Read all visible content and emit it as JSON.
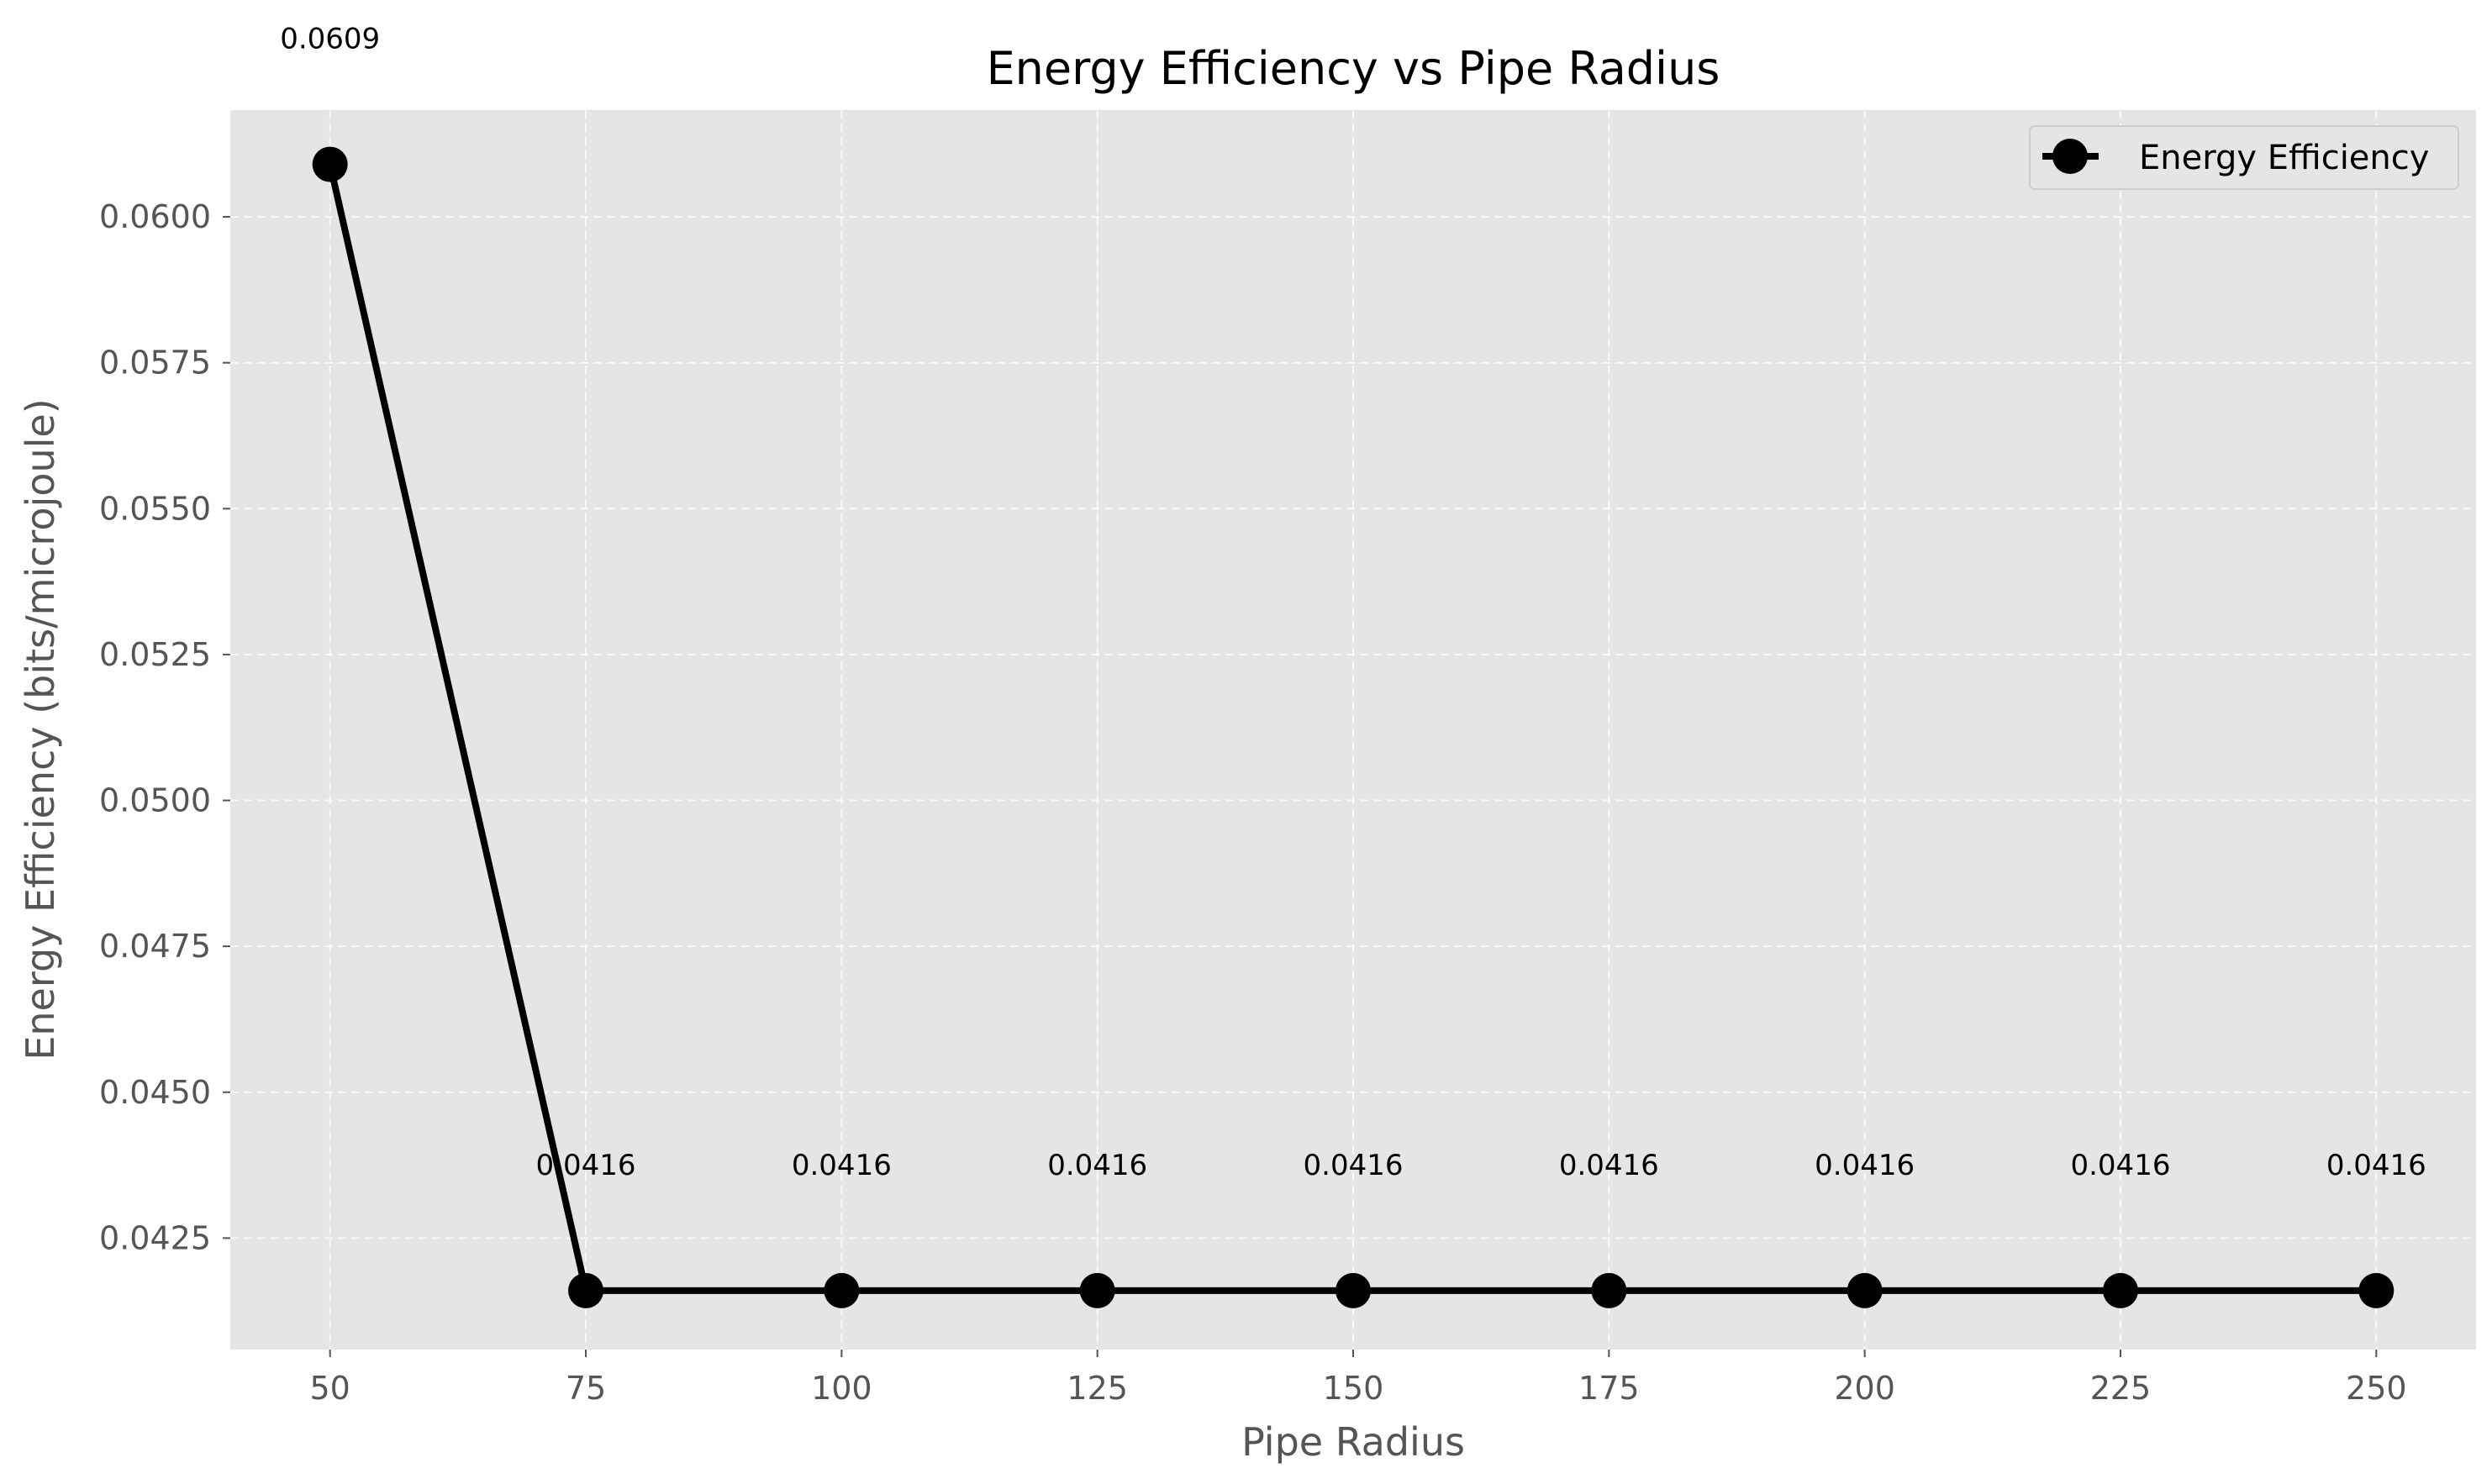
{
  "chart_data": {
    "type": "line",
    "title": "Energy Efficiency vs Pipe Radius",
    "xlabel": "Pipe Radius",
    "ylabel": "Energy Efficiency (bits/microjoule)",
    "x": [
      50,
      75,
      100,
      125,
      150,
      175,
      200,
      225,
      250
    ],
    "xlim": [
      40.25,
      259.75
    ],
    "xticks": [
      50,
      75,
      100,
      125,
      150,
      175,
      200,
      225,
      250
    ],
    "ylim": [
      0.04059,
      0.06183
    ],
    "yticks": [
      0.0425,
      0.045,
      0.0475,
      0.05,
      0.0525,
      0.055,
      0.0575,
      0.06
    ],
    "ytick_labels": [
      "0.0425",
      "0.0450",
      "0.0475",
      "0.0500",
      "0.0525",
      "0.0550",
      "0.0575",
      "0.0600"
    ],
    "series": [
      {
        "name": "Energy Efficiency",
        "values": [
          0.0609,
          0.0416,
          0.0416,
          0.0416,
          0.0416,
          0.0416,
          0.0416,
          0.0416,
          0.0416
        ],
        "labels": [
          "0.0609",
          "0.0416",
          "0.0416",
          "0.0416",
          "0.0416",
          "0.0416",
          "0.0416",
          "0.0416",
          "0.0416"
        ]
      }
    ],
    "grid": true,
    "legend_position": "top-right",
    "colors": {
      "background": "#e5e5e5",
      "line": "#000000",
      "grid": "#ffffff",
      "tick_text": "#555555"
    }
  }
}
